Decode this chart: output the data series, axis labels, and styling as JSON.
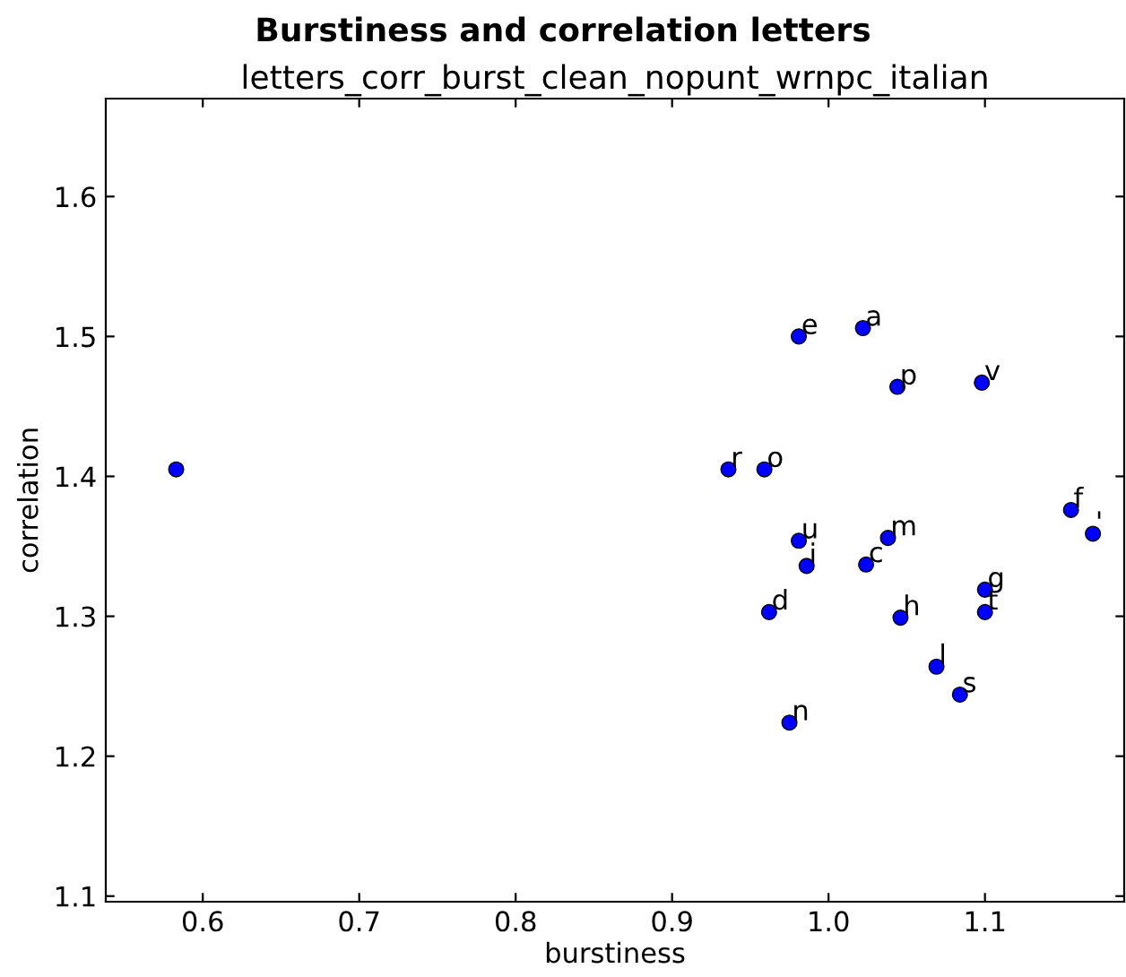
{
  "chart_data": {
    "type": "scatter",
    "title": "Burstiness and correlation letters",
    "subtitle": "letters_corr_burst_clean_nopunt_wrnpc_italian",
    "xlabel": "burstiness",
    "ylabel": "correlation",
    "x": [
      0.583,
      0.936,
      0.959,
      0.981,
      1.022,
      1.044,
      1.098,
      0.981,
      0.986,
      1.038,
      1.024,
      0.962,
      1.046,
      1.1,
      1.1,
      1.069,
      1.084,
      0.975,
      1.155,
      1.169
    ],
    "series": [
      {
        "color": "#0000ff",
        "values": [
          1.405,
          1.405,
          1.405,
          1.5,
          1.506,
          1.464,
          1.467,
          1.354,
          1.336,
          1.356,
          1.337,
          1.303,
          1.299,
          1.319,
          1.303,
          1.264,
          1.244,
          1.224,
          1.376,
          1.359
        ]
      }
    ],
    "annotations": [
      {
        "text": "r",
        "x": 0.936,
        "y": 1.405
      },
      {
        "text": "o",
        "x": 0.959,
        "y": 1.405
      },
      {
        "text": "e",
        "x": 0.981,
        "y": 1.5
      },
      {
        "text": "a",
        "x": 1.022,
        "y": 1.506
      },
      {
        "text": "p",
        "x": 1.044,
        "y": 1.464
      },
      {
        "text": "v",
        "x": 1.098,
        "y": 1.467
      },
      {
        "text": "u",
        "x": 0.981,
        "y": 1.354
      },
      {
        "text": "i",
        "x": 0.986,
        "y": 1.336
      },
      {
        "text": "m",
        "x": 1.038,
        "y": 1.356
      },
      {
        "text": "c",
        "x": 1.024,
        "y": 1.337
      },
      {
        "text": "d",
        "x": 0.962,
        "y": 1.303
      },
      {
        "text": "h",
        "x": 1.046,
        "y": 1.299
      },
      {
        "text": "g",
        "x": 1.1,
        "y": 1.319
      },
      {
        "text": "t",
        "x": 1.1,
        "y": 1.303
      },
      {
        "text": "l",
        "x": 1.069,
        "y": 1.264
      },
      {
        "text": "s",
        "x": 1.084,
        "y": 1.244
      },
      {
        "text": "n",
        "x": 0.975,
        "y": 1.224
      },
      {
        "text": "f",
        "x": 1.155,
        "y": 1.376
      },
      {
        "text": "'",
        "x": 1.169,
        "y": 1.359
      }
    ],
    "xlim": [
      0.538,
      1.189
    ],
    "ylim": [
      1.096,
      1.67
    ],
    "xticks": [
      0.6,
      0.7,
      0.8,
      0.9,
      {
        "value": 1,
        "label": "1.0"
      },
      1.1
    ],
    "yticks": [
      1.1,
      1.2,
      1.3,
      1.4,
      1.5,
      1.6
    ],
    "marker": "circle",
    "grid": false,
    "legend": false
  }
}
